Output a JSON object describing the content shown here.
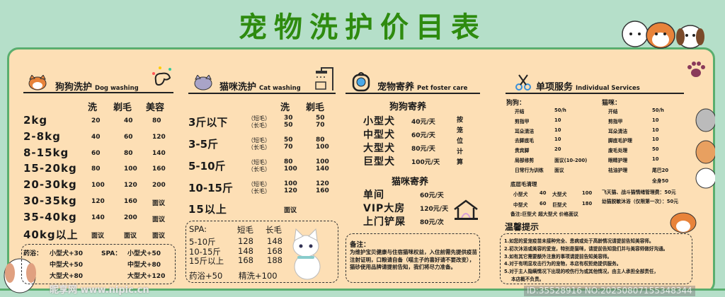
{
  "title": "宠物洗护价目表",
  "colors": {
    "background": "#b5dfc9",
    "title": "#2e8b0f",
    "panel": "#fddfb5",
    "border": "#5aae6e"
  },
  "dog": {
    "title": "狗狗洗护",
    "title_en": "Dog washing",
    "icon": "dog-face-icon",
    "columns": [
      "洗",
      "剃毛",
      "美容"
    ],
    "rows": [
      [
        "2kg",
        "20",
        "40",
        "80"
      ],
      [
        "2-8kg",
        "40",
        "60",
        "120"
      ],
      [
        "8-15kg",
        "60",
        "80",
        "140"
      ],
      [
        "15-20kg",
        "80",
        "100",
        "160"
      ],
      [
        "20-30kg",
        "100",
        "120",
        "200"
      ],
      [
        "30-35kg",
        "120",
        "160",
        "面议"
      ],
      [
        "35-40kg",
        "140",
        "200",
        "面议"
      ],
      [
        "40kg以上",
        "面议",
        "面议",
        "面议"
      ]
    ],
    "extras": {
      "bath_label": "药浴：",
      "bath": [
        "小型犬+30",
        "中型犬+50",
        "大型犬+80"
      ],
      "spa_label": "SPA：",
      "spa": [
        "小型犬+50",
        "中型犬+80",
        "大型犬+120"
      ]
    }
  },
  "cat": {
    "title": "猫咪洗护",
    "title_en": "Cat washing",
    "icon": "cat-face-icon",
    "columns": [
      "洗",
      "剃毛"
    ],
    "short": "（短毛）",
    "long": "（长毛）",
    "rows": [
      {
        "label": "3斤以下",
        "short": [
          "30",
          "50"
        ],
        "long": [
          "50",
          "70"
        ]
      },
      {
        "label": "3-5斤",
        "short": [
          "50",
          "80"
        ],
        "long": [
          "70",
          "100"
        ]
      },
      {
        "label": "5-10斤",
        "short": [
          "80",
          "100"
        ],
        "long": [
          "100",
          "140"
        ]
      },
      {
        "label": "10-15斤",
        "short": [
          "100",
          "120"
        ],
        "long": [
          "120",
          "160"
        ]
      }
    ],
    "over": {
      "label": "15以上",
      "value": "面议"
    },
    "spa": {
      "label": "SPA:",
      "columns": [
        "短毛",
        "长毛"
      ],
      "rows": [
        [
          "5-10斤",
          "128",
          "148"
        ],
        [
          "10-15斤",
          "148",
          "168"
        ],
        [
          "15斤以上",
          "168",
          "188"
        ]
      ],
      "bath": "药浴+50",
      "fine": "精洗+100"
    }
  },
  "foster": {
    "title": "宠物寄养",
    "title_en": "Pet foster care",
    "dog_title": "狗狗寄养",
    "dog_rows": [
      [
        "小型犬",
        "40元/天"
      ],
      [
        "中型犬",
        "60元/天"
      ],
      [
        "大型犬",
        "80元/天"
      ],
      [
        "巨型犬",
        "100元/天"
      ]
    ],
    "note_vertical": "按笼位计算",
    "cat_title": "猫咪寄养",
    "cat_rows": [
      [
        "单间",
        "60元/天"
      ],
      [
        "VIP大房",
        "120元/天"
      ],
      [
        "上门铲屎",
        "80元/次"
      ]
    ],
    "remark_title": "备注：",
    "remark": "为维护宝贝健康与住宿猫咪权益，入住前需先提供疫苗注射证明，口粮请自备（喵主子的喜好请不要改变），猫砂使用品牌请提前告知，我们将尽力准备。"
  },
  "individual": {
    "title": "单项服务",
    "title_en": "Individual Services",
    "dog_label": "狗狗：",
    "cat_label": "猫咪：",
    "dog_items": [
      [
        "开结",
        "50/h"
      ],
      [
        "剪指甲",
        "10"
      ],
      [
        "耳朵清洁",
        "10"
      ],
      [
        "去脚底毛",
        "10"
      ],
      [
        "贵宾脚",
        "20"
      ],
      [
        "局部修剪",
        "面议(10-200)"
      ],
      [
        "日常行为训练",
        "面议"
      ]
    ],
    "cat_items": [
      [
        "开结",
        "50/h"
      ],
      [
        "剪指甲",
        "10"
      ],
      [
        "耳朵清洁",
        "10"
      ],
      [
        "脚底毛护理",
        "10"
      ],
      [
        "废毛处理",
        "50"
      ],
      [
        "眼睛护理",
        "10"
      ],
      [
        "祛油护理",
        "尾巴20"
      ]
    ],
    "cat_extra": "全身50",
    "undercoat": {
      "title": "底层毛清理",
      "rows": [
        [
          "小型犬",
          "40",
          "大型犬",
          "100"
        ],
        [
          "中型犬",
          "60",
          "巨型犬",
          "180"
        ]
      ],
      "note": "备注:巨型犬 超大型犬 价格面议"
    },
    "cat_fees": [
      "飞天猫、战斗猫情绪管理费：50元",
      "幼猫脱敏沐浴（仅限第一次）：50元"
    ]
  },
  "tips": {
    "title": "温馨提示",
    "items": [
      "1.如您的爱宠疫苗未接种完全、患病或处于高龄情况请提前告知美容师。",
      "2.初次沐浴或美容的爱宠，特别是猫咪，请提前告知我们并与美容师做好沟通。",
      "3.如有其它需要额外注意的事项请提前告知美容师。",
      "4.对于有明显攻击行为的宠物，本店有权拒绝提供服务。",
      "5.对于主人隐瞒情况下出现的咬伤行为或其他情况，由主人承担全部责任，",
      "本店概不负责。"
    ]
  },
  "watermark": {
    "site": "昵享网 www.nipic.cn",
    "id": "ID:35528916 NO:20250807155348344"
  }
}
